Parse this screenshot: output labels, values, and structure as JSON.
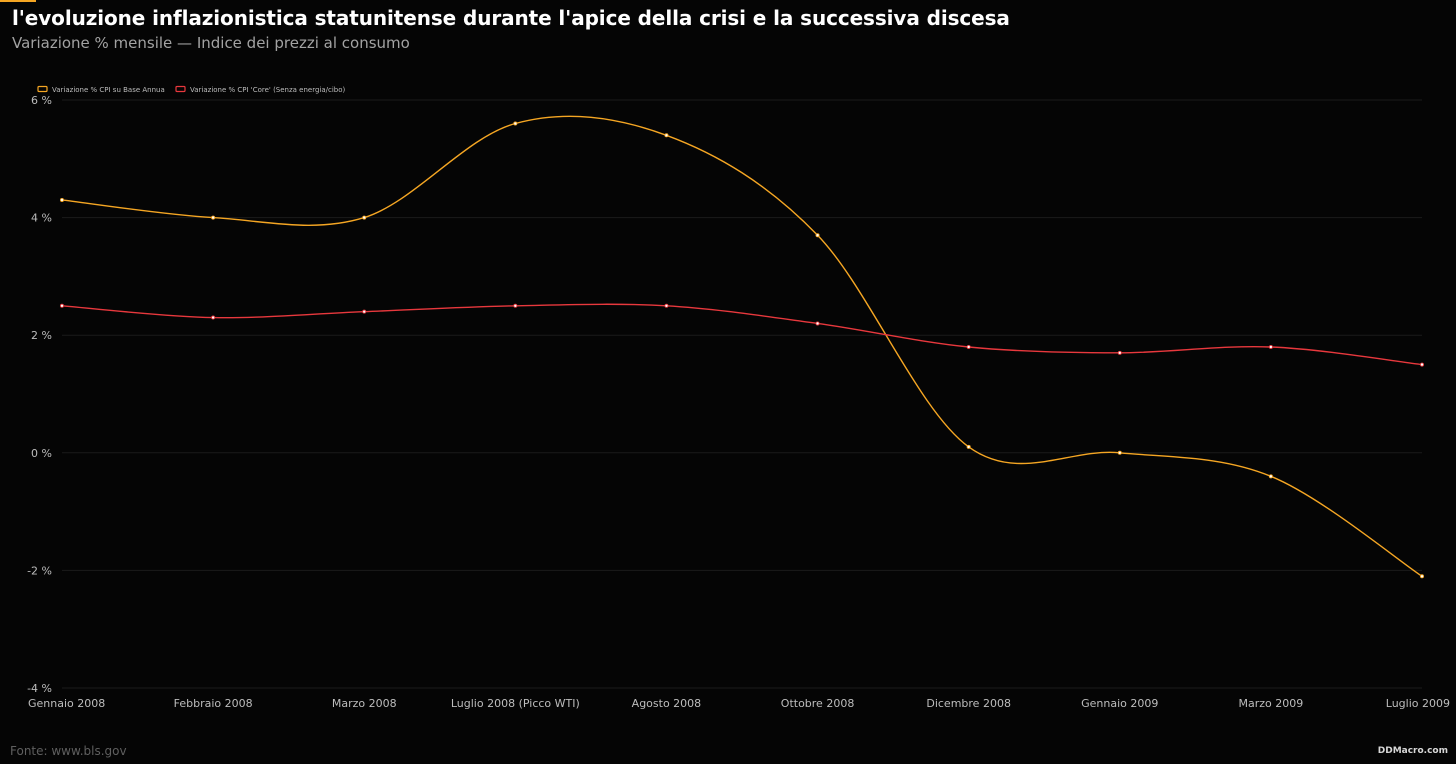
{
  "header": {
    "title": "l'evoluzione inflazionistica statunitense durante l'apice della crisi e la successiva discesa",
    "subtitle": "Variazione % mensile — Indice dei prezzi al consumo"
  },
  "footer": {
    "source": "Fonte: www.bls.gov",
    "brand": "DDMacro.com"
  },
  "colors": {
    "background": "#050505",
    "accent": "#f5a623",
    "grid": "#1b1b1b",
    "tick_text": "#bdbdbd"
  },
  "chart_data": {
    "type": "line",
    "title": "l'evoluzione inflazionistica statunitense durante l'apice della crisi e la successiva discesa",
    "subtitle": "Variazione % mensile — Indice dei prezzi al consumo",
    "xlabel": "",
    "ylabel": "",
    "ylim": [
      -4,
      6
    ],
    "yticks": [
      6,
      4,
      2,
      0,
      -2,
      -4
    ],
    "ytick_labels": [
      "6 %",
      "4 %",
      "2 %",
      "0 %",
      "-2 %",
      "-4 %"
    ],
    "categories": [
      "Gennaio 2008",
      "Febbraio 2008",
      "Marzo 2008",
      "Luglio 2008 (Picco WTI)",
      "Agosto 2008",
      "Ottobre 2008",
      "Dicembre 2008",
      "Gennaio 2009",
      "Marzo 2009",
      "Luglio 2009"
    ],
    "grid": true,
    "legend_position": "top-left",
    "series": [
      {
        "name": "Variazione % CPI su Base Annua",
        "color": "#f5a623",
        "values": [
          4.3,
          4.0,
          4.0,
          5.6,
          5.4,
          3.7,
          0.1,
          0.0,
          -0.4,
          -2.1
        ]
      },
      {
        "name": "Variazione % CPI 'Core' (Senza energia/cibo)",
        "color": "#e8383d",
        "values": [
          2.5,
          2.3,
          2.4,
          2.5,
          2.5,
          2.2,
          1.8,
          1.7,
          1.8,
          1.5
        ]
      }
    ]
  }
}
